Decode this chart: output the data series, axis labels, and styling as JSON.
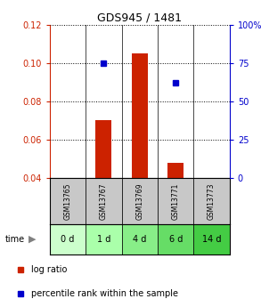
{
  "title": "GDS945 / 1481",
  "categories": [
    "GSM13765",
    "GSM13767",
    "GSM13769",
    "GSM13771",
    "GSM13773"
  ],
  "time_labels": [
    "0 d",
    "1 d",
    "4 d",
    "6 d",
    "14 d"
  ],
  "log_ratio": [
    0.0,
    0.07,
    0.105,
    0.048,
    0.0
  ],
  "percentile": [
    null,
    75,
    null,
    62,
    null
  ],
  "ylim_left": [
    0.04,
    0.12
  ],
  "ylim_right": [
    0,
    100
  ],
  "yticks_left": [
    0.04,
    0.06,
    0.08,
    0.1,
    0.12
  ],
  "yticks_right": [
    0,
    25,
    50,
    75,
    100
  ],
  "bar_color": "#cc2200",
  "dot_color": "#0000cc",
  "bar_width": 0.45,
  "bg_plot": "#ffffff",
  "bg_gsm": "#c8c8c8",
  "time_colors": [
    "#ccffcc",
    "#aaffaa",
    "#88ee88",
    "#66dd66",
    "#44cc44"
  ],
  "legend_log": "log ratio",
  "legend_pct": "percentile rank within the sample",
  "title_color": "#000000",
  "left_axis_color": "#cc2200",
  "right_axis_color": "#0000cc",
  "figsize": [
    2.93,
    3.45
  ],
  "dpi": 100
}
